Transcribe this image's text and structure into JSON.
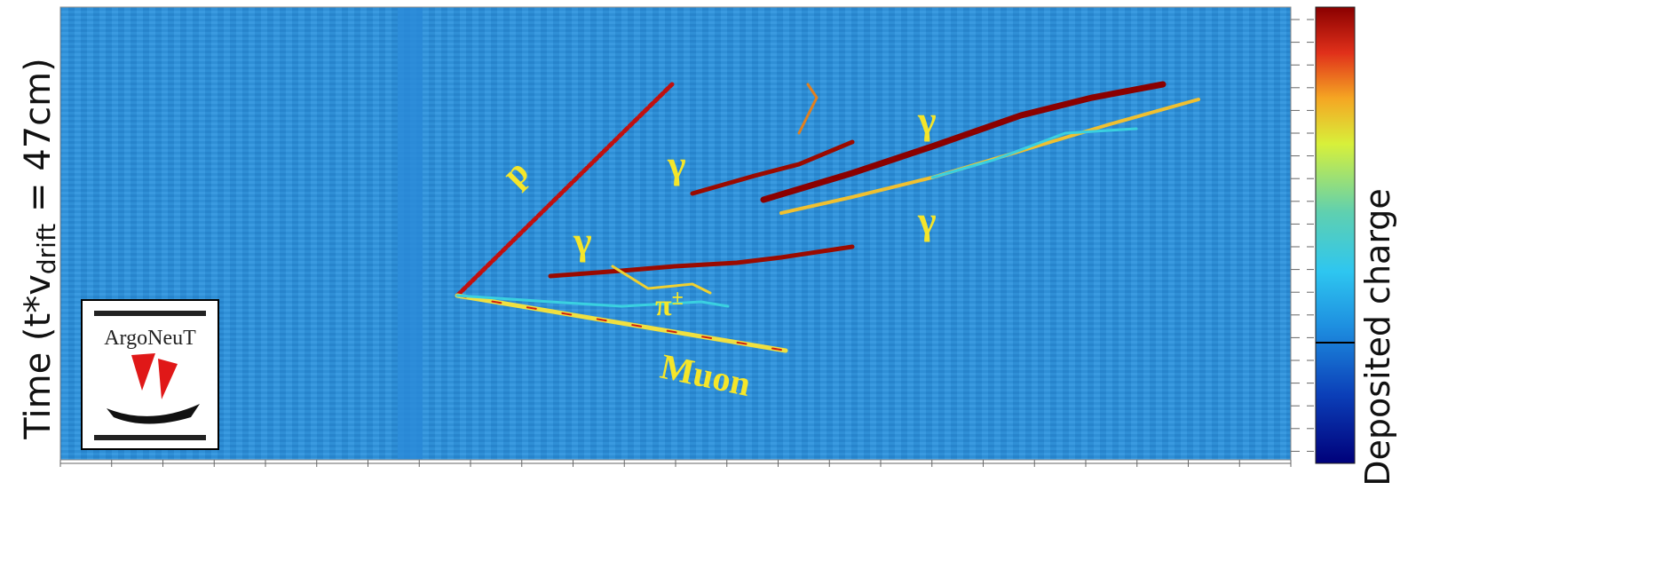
{
  "axis_label": {
    "text": "Time (t*v",
    "subscript": "drift",
    "suffix": " = 47cm)"
  },
  "colorbar_label": "Deposited charge",
  "annotations": {
    "proton": "p",
    "gamma_upper_left": "γ",
    "gamma_lower_left": "γ",
    "gamma_upper_right": "γ",
    "gamma_lower_right": "γ",
    "pion": {
      "symbol": "π",
      "superscript": "±"
    },
    "muon": "Muon"
  },
  "logo": "ArgoNeuT"
}
